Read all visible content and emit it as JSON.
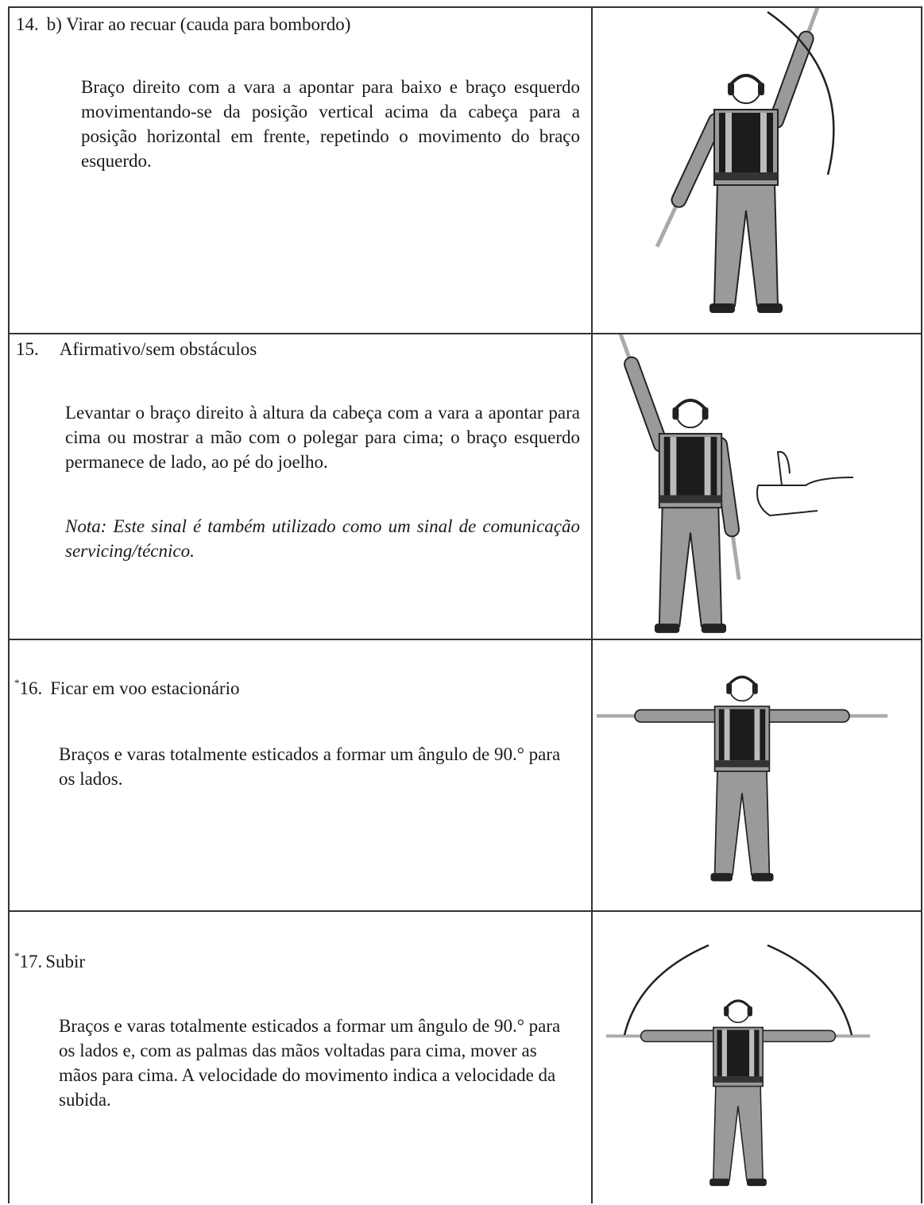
{
  "rows": [
    {
      "number": "14.",
      "title": "b) Virar ao recuar (cauda para bombordo)",
      "description": "Braço direito com a vara a apontar para baixo e braço esquerdo movimentando-se da posição vertical acima da cabeça para a posição horizontal em frente, repetindo o movimento do braço esquerdo."
    },
    {
      "number": "15.",
      "title": "Afirmativo/sem obstáculos",
      "description": "Levantar o braço direito à altura da cabeça com a vara a apontar para cima ou mostrar a mão com o polegar para cima; o braço esquerdo permanece de lado, ao pé do joelho.",
      "note": "Nota: Este sinal é também utilizado como um sinal de comunicação servicing/técnico."
    },
    {
      "marker": "*",
      "number": "16.",
      "title": "Ficar em voo estacionário",
      "description": "Braços e varas totalmente esticados a formar um ângulo de 90.° para os lados."
    },
    {
      "marker": "*",
      "number": "17.",
      "title": "Subir",
      "description": "Braços e varas totalmente esticados a formar um ângulo de 90.° para os lados e, com as palmas das mãos voltadas para cima, mover as mãos para cima. A velocidade do movimento indica a velocidade da subida."
    }
  ]
}
